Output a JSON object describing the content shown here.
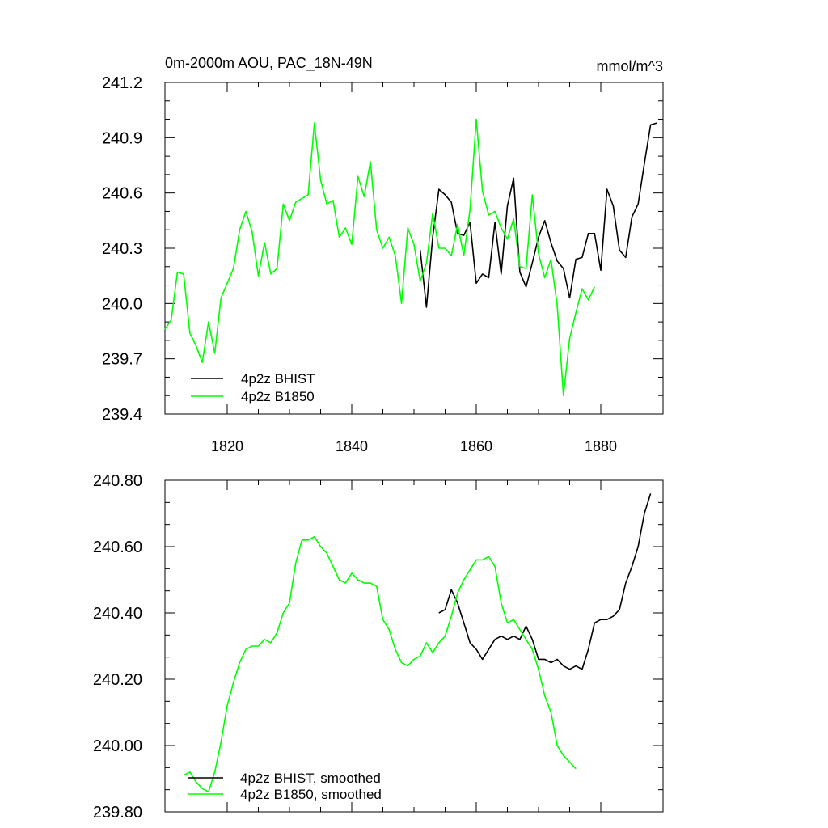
{
  "chart_data": [
    {
      "type": "line",
      "title_left": "0m-2000m AOU, PAC_18N-49N",
      "title_right": "mmol/m^3",
      "xlim": [
        1810,
        1890
      ],
      "ylim": [
        239.4,
        241.2
      ],
      "yticks": [
        "239.4",
        "239.7",
        "240.0",
        "240.3",
        "240.6",
        "240.9",
        "241.2"
      ],
      "xticks": [
        "1820",
        "1840",
        "1860",
        "1880"
      ],
      "legend_position": "bottom-left",
      "series": [
        {
          "name": "4p2z BHIST",
          "color": "#000000",
          "x": [
            1851,
            1852,
            1853,
            1854,
            1855,
            1856,
            1857,
            1858,
            1859,
            1860,
            1861,
            1862,
            1863,
            1864,
            1865,
            1866,
            1867,
            1868,
            1869,
            1870,
            1871,
            1872,
            1873,
            1874,
            1875,
            1876,
            1877,
            1878,
            1879,
            1880,
            1881,
            1882,
            1883,
            1884,
            1885,
            1886,
            1887,
            1888,
            1889
          ],
          "y": [
            240.29,
            239.98,
            240.36,
            240.62,
            240.59,
            240.55,
            240.38,
            240.37,
            240.44,
            240.11,
            240.16,
            240.14,
            240.44,
            240.16,
            240.53,
            240.68,
            240.17,
            240.09,
            240.22,
            240.36,
            240.45,
            240.33,
            240.23,
            240.19,
            240.03,
            240.24,
            240.25,
            240.38,
            240.38,
            240.18,
            240.62,
            240.53,
            240.29,
            240.25,
            240.47,
            240.54,
            240.76,
            240.97,
            240.98
          ]
        },
        {
          "name": "4p2z B1850",
          "color": "#00ff00",
          "x": [
            1810,
            1811,
            1812,
            1813,
            1814,
            1815,
            1816,
            1817,
            1818,
            1819,
            1820,
            1821,
            1822,
            1823,
            1824,
            1825,
            1826,
            1827,
            1828,
            1829,
            1830,
            1831,
            1832,
            1833,
            1834,
            1835,
            1836,
            1837,
            1838,
            1839,
            1840,
            1841,
            1842,
            1843,
            1844,
            1845,
            1846,
            1847,
            1848,
            1849,
            1850,
            1851,
            1852,
            1853,
            1854,
            1855,
            1856,
            1857,
            1858,
            1859,
            1860,
            1861,
            1862,
            1863,
            1864,
            1865,
            1866,
            1867,
            1868,
            1869,
            1870,
            1871,
            1872,
            1873,
            1874,
            1875,
            1876,
            1877,
            1878,
            1879
          ],
          "y": [
            239.86,
            239.91,
            240.17,
            240.16,
            239.84,
            239.77,
            239.68,
            239.9,
            239.73,
            240.03,
            240.11,
            240.19,
            240.4,
            240.5,
            240.39,
            240.15,
            240.33,
            240.16,
            240.19,
            240.54,
            240.45,
            240.55,
            240.57,
            240.59,
            240.98,
            240.67,
            240.54,
            240.56,
            240.36,
            240.41,
            240.32,
            240.69,
            240.58,
            240.77,
            240.4,
            240.3,
            240.36,
            240.26,
            240.0,
            240.41,
            240.32,
            240.12,
            240.22,
            240.49,
            240.3,
            240.3,
            240.26,
            240.43,
            240.26,
            240.51,
            241.0,
            240.61,
            240.48,
            240.5,
            240.41,
            240.35,
            240.46,
            240.2,
            240.19,
            240.59,
            240.27,
            240.14,
            240.24,
            239.99,
            239.5,
            239.81,
            239.95,
            240.08,
            240.02,
            240.09
          ]
        }
      ]
    },
    {
      "type": "line",
      "xlim": [
        1810,
        1890
      ],
      "ylim": [
        239.8,
        240.8
      ],
      "yticks": [
        "239.80",
        "240.00",
        "240.20",
        "240.40",
        "240.60",
        "240.80"
      ],
      "legend_position": "bottom-left",
      "series": [
        {
          "name": "4p2z BHIST, smoothed",
          "color": "#000000",
          "x": [
            1854,
            1855,
            1856,
            1857,
            1858,
            1859,
            1860,
            1861,
            1862,
            1863,
            1864,
            1865,
            1866,
            1867,
            1868,
            1869,
            1870,
            1871,
            1872,
            1873,
            1874,
            1875,
            1876,
            1877,
            1878,
            1879,
            1880,
            1881,
            1882,
            1883,
            1884,
            1885,
            1886,
            1887,
            1888
          ],
          "y": [
            240.4,
            240.41,
            240.47,
            240.43,
            240.37,
            240.31,
            240.29,
            240.26,
            240.29,
            240.32,
            240.33,
            240.32,
            240.33,
            240.32,
            240.36,
            240.32,
            240.26,
            240.26,
            240.25,
            240.26,
            240.24,
            240.23,
            240.24,
            240.23,
            240.29,
            240.37,
            240.38,
            240.38,
            240.39,
            240.41,
            240.49,
            240.54,
            240.6,
            240.7,
            240.76
          ]
        },
        {
          "name": "4p2z B1850, smoothed",
          "color": "#00ff00",
          "x": [
            1813,
            1814,
            1815,
            1816,
            1817,
            1818,
            1819,
            1820,
            1821,
            1822,
            1823,
            1824,
            1825,
            1826,
            1827,
            1828,
            1829,
            1830,
            1831,
            1832,
            1833,
            1834,
            1835,
            1836,
            1837,
            1838,
            1839,
            1840,
            1841,
            1842,
            1843,
            1844,
            1845,
            1846,
            1847,
            1848,
            1849,
            1850,
            1851,
            1852,
            1853,
            1854,
            1855,
            1856,
            1857,
            1858,
            1859,
            1860,
            1861,
            1862,
            1863,
            1864,
            1865,
            1866,
            1867,
            1868,
            1869,
            1870,
            1871,
            1872,
            1873,
            1874,
            1875,
            1876
          ],
          "y": [
            239.91,
            239.92,
            239.89,
            239.87,
            239.86,
            239.92,
            240.01,
            240.12,
            240.19,
            240.25,
            240.29,
            240.3,
            240.3,
            240.32,
            240.31,
            240.34,
            240.4,
            240.43,
            240.55,
            240.62,
            240.62,
            240.63,
            240.6,
            240.58,
            240.54,
            240.5,
            240.49,
            240.52,
            240.5,
            240.49,
            240.49,
            240.48,
            240.38,
            240.35,
            240.29,
            240.25,
            240.24,
            240.26,
            240.27,
            240.31,
            240.28,
            240.31,
            240.33,
            240.39,
            240.46,
            240.5,
            240.53,
            240.56,
            240.56,
            240.57,
            240.54,
            240.43,
            240.37,
            240.38,
            240.35,
            240.32,
            240.29,
            240.23,
            240.15,
            240.1,
            240.0,
            239.97,
            239.95,
            239.93
          ]
        }
      ]
    }
  ]
}
